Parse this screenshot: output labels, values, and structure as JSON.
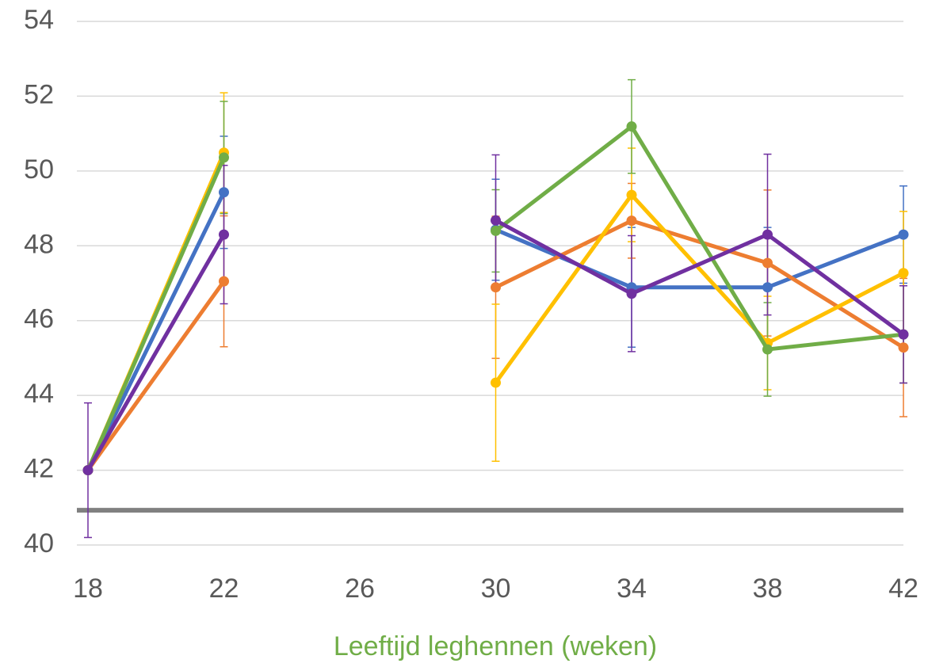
{
  "chart_data": {
    "type": "line",
    "x_label": "Leeftijd leghennen (weken)",
    "x": [
      18,
      22,
      26,
      30,
      34,
      38,
      42
    ],
    "xlim": [
      18,
      42
    ],
    "xticks": [
      18,
      22,
      26,
      30,
      34,
      38,
      42
    ],
    "ylim": [
      40,
      54
    ],
    "yticks": [
      40,
      42,
      44,
      46,
      48,
      50,
      52,
      54
    ],
    "grid": true,
    "reference_line": {
      "value": 40.93,
      "color": "#808080"
    },
    "series": [
      {
        "color": "#4472c4",
        "values": [
          42,
          49.43,
          null,
          48.43,
          46.89,
          46.89,
          48.3
        ],
        "errors": [
          null,
          1.5,
          null,
          1.35,
          1.6,
          1.6,
          1.3
        ]
      },
      {
        "color": "#ed7d31",
        "values": [
          42,
          47.05,
          null,
          46.89,
          48.67,
          47.54,
          45.28
        ],
        "errors": [
          null,
          1.75,
          null,
          1.9,
          1.0,
          1.95,
          1.85
        ]
      },
      {
        "color": "#ffc000",
        "values": [
          42,
          50.49,
          null,
          44.34,
          49.36,
          45.4,
          47.27
        ],
        "errors": [
          null,
          1.6,
          null,
          2.1,
          1.25,
          1.25,
          1.65
        ]
      },
      {
        "color": "#70ad47",
        "values": [
          42,
          50.36,
          null,
          48.4,
          51.19,
          45.23,
          45.63
        ],
        "errors": [
          null,
          1.5,
          null,
          1.1,
          1.25,
          1.25,
          1.3
        ]
      },
      {
        "color": "#7030a0",
        "values": [
          42,
          48.3,
          null,
          48.68,
          46.72,
          48.3,
          45.63
        ],
        "errors": [
          1.8,
          1.85,
          null,
          1.75,
          1.55,
          2.15,
          1.3
        ]
      }
    ]
  }
}
